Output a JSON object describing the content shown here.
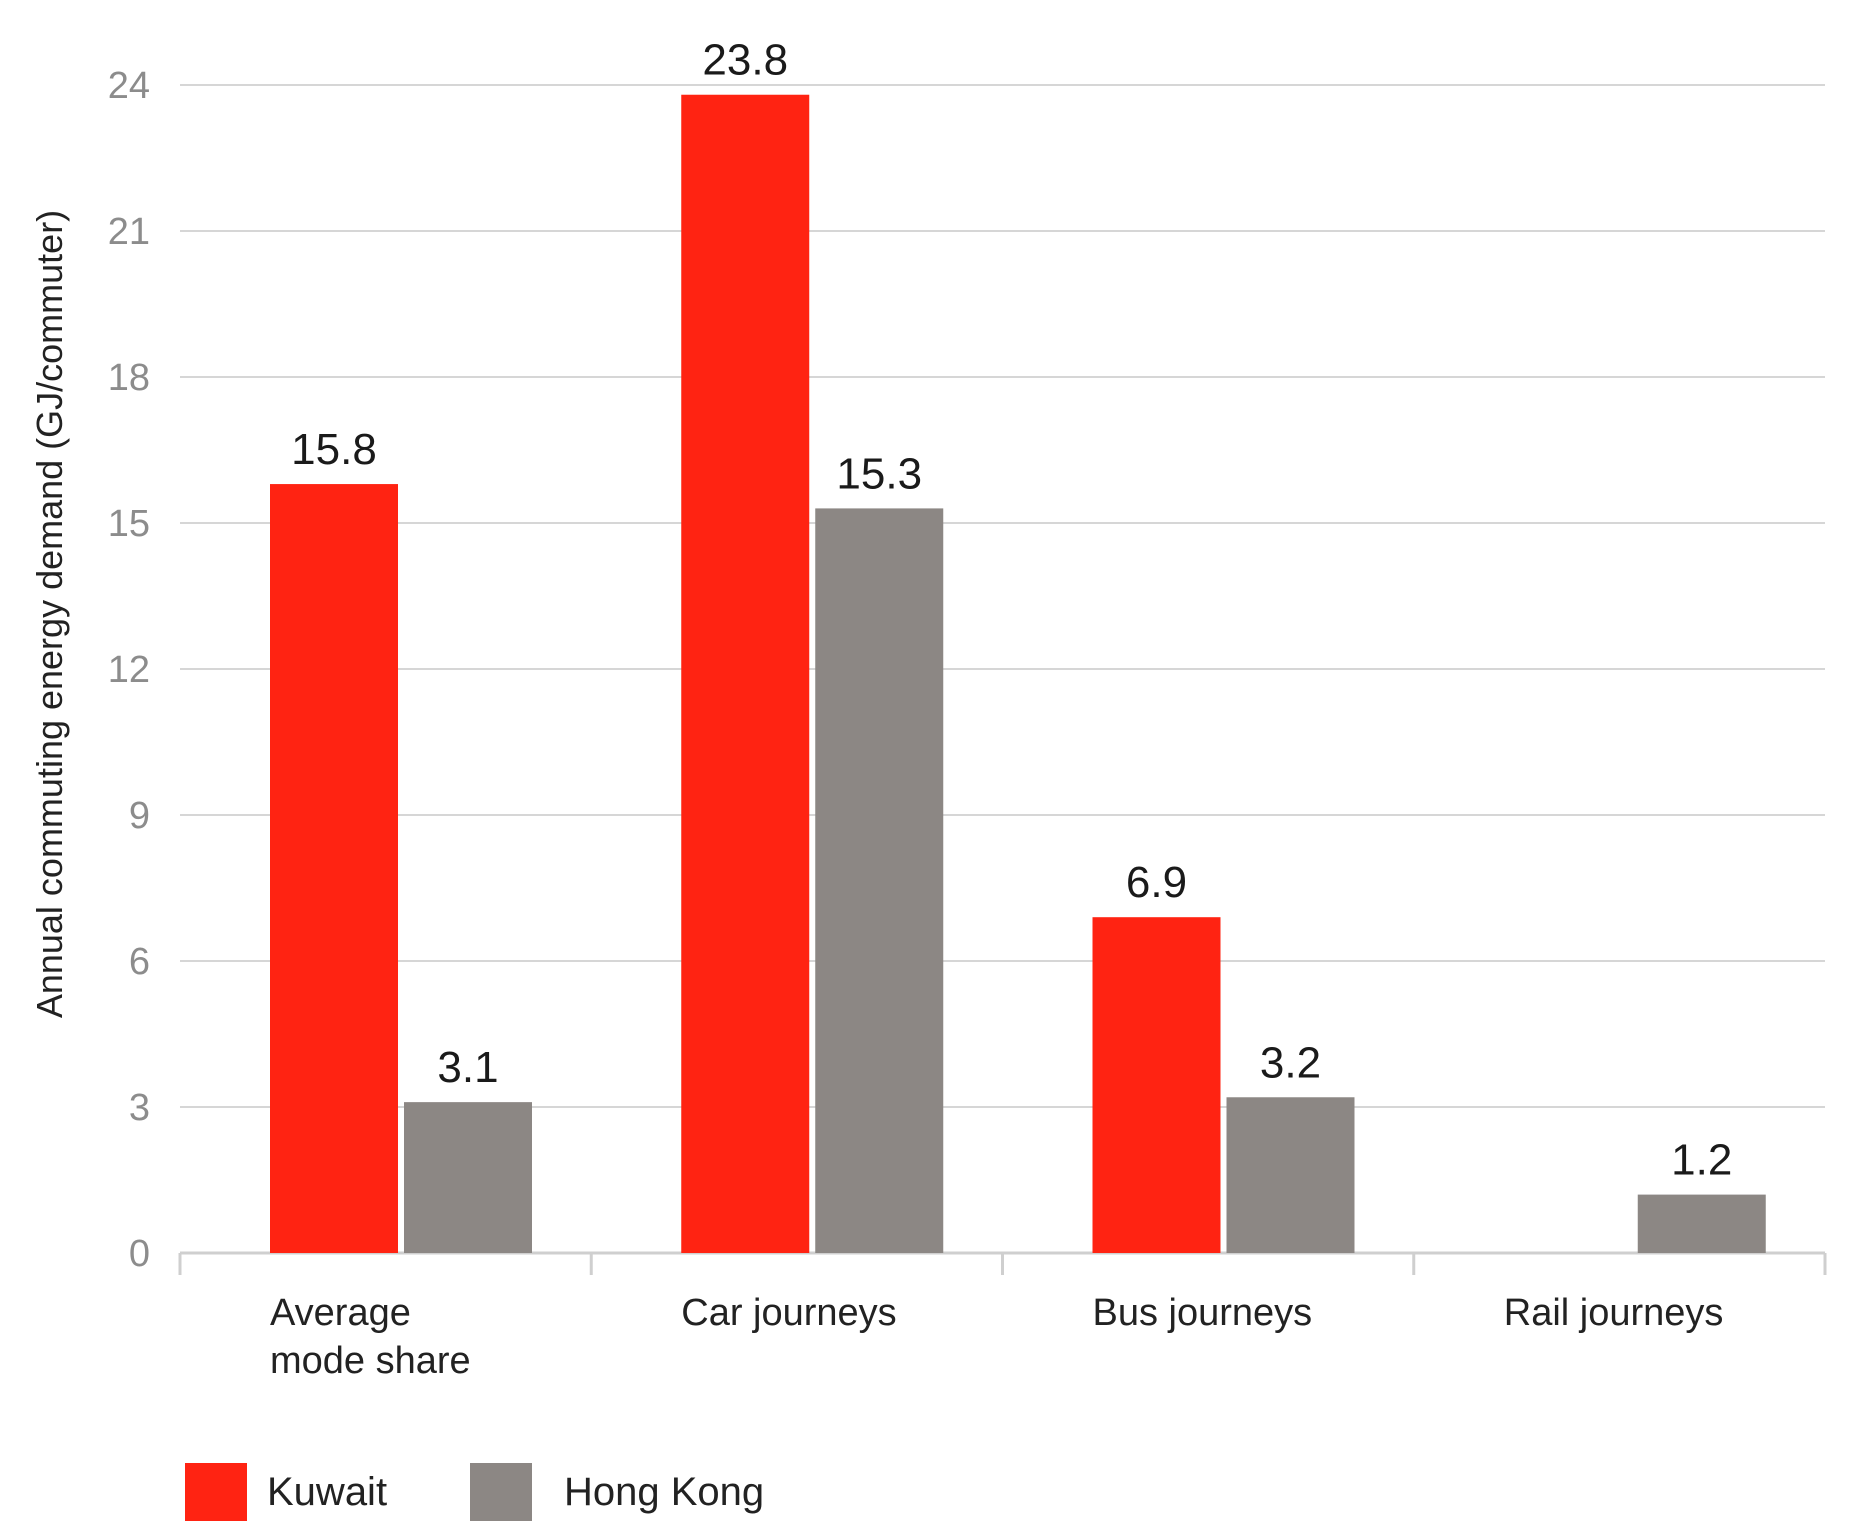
{
  "chart_data": {
    "type": "bar",
    "ylabel": "Annual commuting energy demand (GJ/commuter)",
    "ylim": [
      0,
      24
    ],
    "yticks": [
      0,
      3,
      6,
      9,
      12,
      15,
      18,
      21,
      24
    ],
    "grid": true,
    "legend_position": "bottom-left",
    "categories": [
      [
        "Average",
        "mode share"
      ],
      [
        "Car journeys"
      ],
      [
        "Bus journeys"
      ],
      [
        "Rail journeys"
      ]
    ],
    "series": [
      {
        "name": "Kuwait",
        "color": "#ff2312",
        "values": [
          15.8,
          23.8,
          6.9,
          null
        ],
        "labels": [
          "15.8",
          "23.8",
          "6.9",
          ""
        ]
      },
      {
        "name": "Hong Kong",
        "color": "#8c8784",
        "values": [
          3.1,
          15.3,
          3.2,
          1.2
        ],
        "labels": [
          "3.1",
          "15.3",
          "3.2",
          "1.2"
        ]
      }
    ]
  }
}
